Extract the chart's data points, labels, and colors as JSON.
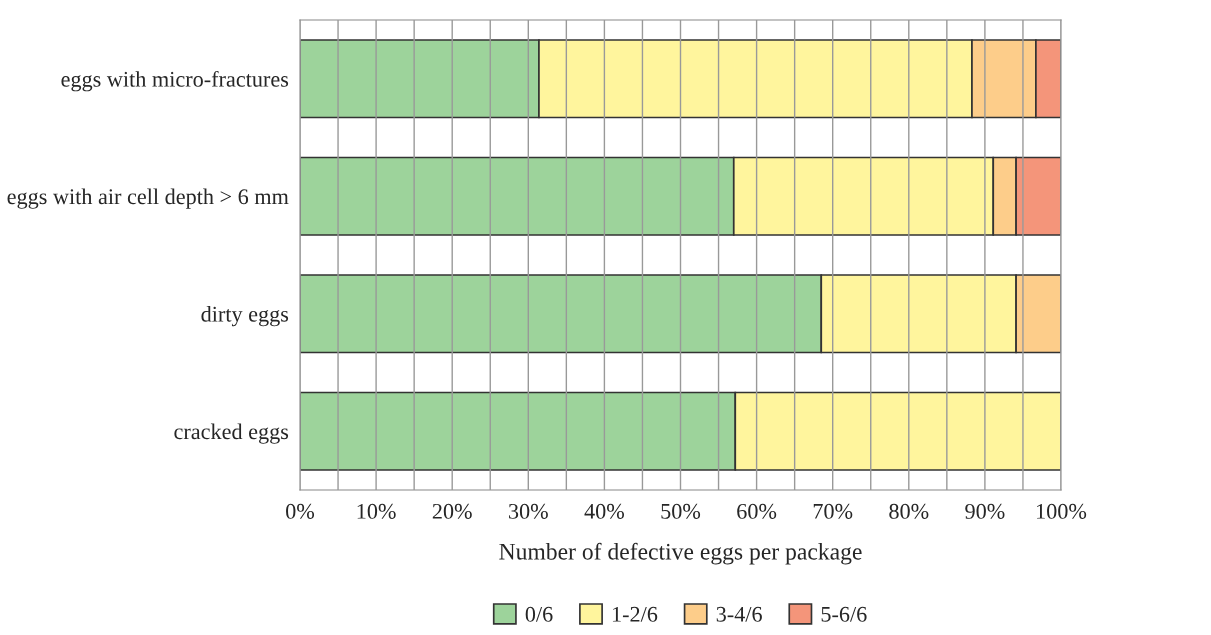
{
  "chart_data": {
    "type": "bar",
    "orientation": "horizontal",
    "stacked": true,
    "categories": [
      "eggs with micro-fractures",
      "eggs with air cell depth > 6 mm",
      "dirty eggs",
      "cracked eggs"
    ],
    "series": [
      {
        "name": "0/6",
        "color": "#9dd39b",
        "values": [
          31.4,
          57.0,
          68.5,
          57.2
        ]
      },
      {
        "name": "1-2/6",
        "color": "#fff59d",
        "values": [
          56.9,
          34.1,
          25.6,
          42.8
        ]
      },
      {
        "name": "3-4/6",
        "color": "#fdcd8a",
        "values": [
          8.4,
          3.0,
          5.9,
          0
        ]
      },
      {
        "name": "5-6/6",
        "color": "#f4957a",
        "values": [
          3.3,
          5.9,
          0,
          0
        ]
      }
    ],
    "xlim": [
      0,
      100
    ],
    "xticks": [
      {
        "value": 0,
        "label": "0%"
      },
      {
        "value": 5,
        "label": null
      },
      {
        "value": 10,
        "label": "10%"
      },
      {
        "value": 15,
        "label": null
      },
      {
        "value": 20,
        "label": "20%"
      },
      {
        "value": 25,
        "label": null
      },
      {
        "value": 30,
        "label": "30%"
      },
      {
        "value": 35,
        "label": null
      },
      {
        "value": 40,
        "label": "40%"
      },
      {
        "value": 45,
        "label": null
      },
      {
        "value": 50,
        "label": "50%"
      },
      {
        "value": 55,
        "label": null
      },
      {
        "value": 60,
        "label": "60%"
      },
      {
        "value": 65,
        "label": null
      },
      {
        "value": 70,
        "label": "70%"
      },
      {
        "value": 75,
        "label": null
      },
      {
        "value": 80,
        "label": "80%"
      },
      {
        "value": 85,
        "label": null
      },
      {
        "value": 90,
        "label": "90%"
      },
      {
        "value": 95,
        "label": null
      },
      {
        "value": 100,
        "label": "100%"
      }
    ],
    "xlabel": "Number of defective eggs per package",
    "grid": "x",
    "legend": "bottom"
  }
}
